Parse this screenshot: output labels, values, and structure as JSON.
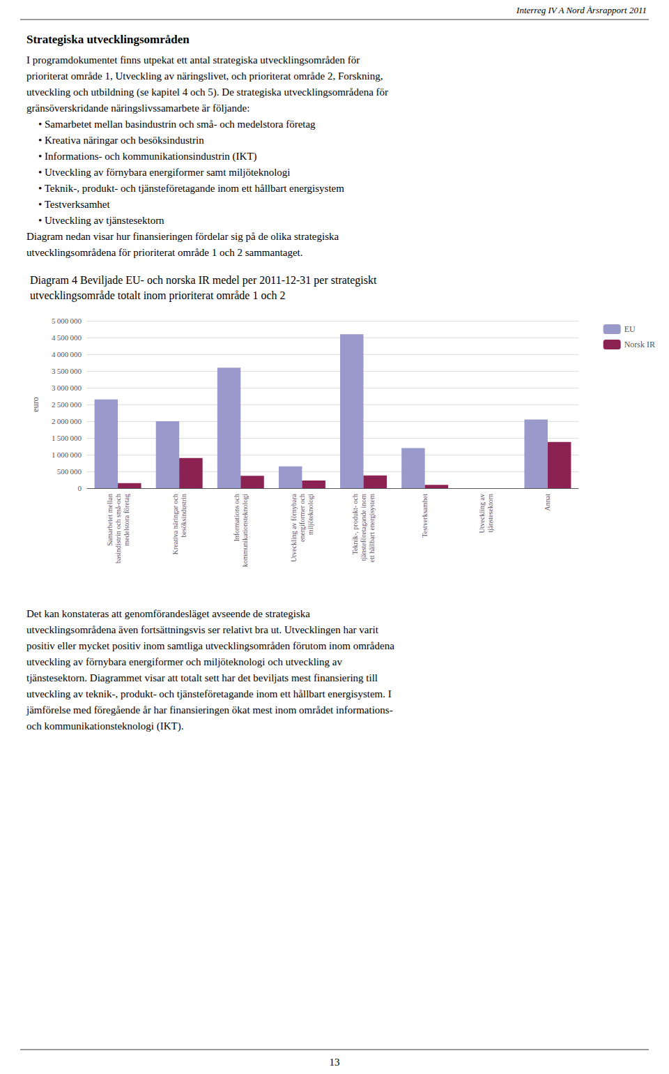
{
  "chart_data": {
    "type": "bar",
    "title": "Diagram 4 Beviljade EU- och norska IR medel per 2011-12-31 per strategiskt",
    "subtitle": "utvecklingsområde totalt inom prioriterat område 1 och 2",
    "categories": [
      "Samarbetet mellan\nbasindistrin och små-och\nmedelstora företag",
      "Kreativa näringar och\nbesöksindustrin",
      "Informations och\nkommunikationsteknologi",
      "Utveckling av förnybara\nenergiformer och\nmiljöteknologi",
      "Teknik-, produkt- och\ntjänsteföretagande inom\nett hållbart energisystem",
      "Testverksamhet",
      "Utveckling av\ntjänstesektorn",
      "Annat"
    ],
    "series": [
      {
        "name": "EU",
        "color": "#9999cc",
        "values": [
          2650000,
          2000000,
          3600000,
          650000,
          4600000,
          1200000,
          0,
          2050000
        ]
      },
      {
        "name": "Norsk IR",
        "color": "#8B2252",
        "values": [
          150000,
          900000,
          370000,
          230000,
          380000,
          100000,
          0,
          1380000
        ]
      }
    ],
    "ylabel": "euro",
    "ylim": [
      0,
      5000000
    ],
    "yticks": [
      0,
      {
        "value": 500000,
        "label": "500 000"
      },
      {
        "value": 1000000,
        "label": "1 000 000"
      },
      {
        "value": 1500000,
        "label": "1 500 000"
      },
      {
        "value": 2000000,
        "label": "2 000 000"
      },
      {
        "value": 2500000,
        "label": "2 500 000"
      },
      {
        "value": 3000000,
        "label": "3 000 000"
      },
      {
        "value": 3500000,
        "label": "3 500 000"
      },
      {
        "value": 4000000,
        "label": "4 000 000"
      },
      {
        "value": 4500000,
        "label": "4 500 000"
      },
      {
        "value": 5000000,
        "label": "5 000 000"
      }
    ],
    "grid": true,
    "legend": "upper right",
    "annotations": [
      "Interreg IV A Nord Årsrapport 2011",
      "Strategiska utvecklingsområden",
      "I programdokumentet finns utpekat ett antal strategiska utvecklingsområden för",
      "prioriterat område 1, Utveckling av näringslivet, och prioriterat område 2, Forskning,",
      "utveckling och utbildning (se kapitel 4 och 5). De strategiska utvecklingsområdena för",
      "gränsöverskridande näringslivssamarbete är följande:",
      "• Samarbetet mellan basindustrin och små- och medelstora företag",
      "• Kreativa näringar och besöksindustrin",
      "• Informations- och kommunikationsindustrin (IKT)",
      "• Utveckling av förnybara energiformer samt miljöteknologi",
      "• Teknik-, produkt- och tjänsteföretagande inom ett hållbart energisystem",
      "• Testverksamhet",
      "• Utveckling av tjänstesektorn",
      "Diagram nedan visar hur finansieringen fördelar sig på de olika strategiska",
      "utvecklingsområdena för prioriterat område 1 och 2 sammantaget.",
      "Det kan konstateras att genomförandesläget avseende de strategiska",
      "utvecklingsområdena även fortsättningsvis ser relativt bra ut. Utvecklingen har varit",
      "positiv eller mycket positiv inom samtliga utvecklingsområden förutom inom områdena",
      "utveckling av förnybara energiformer och miljöteknologi och utveckling av",
      "tjänstesektorn. Diagrammet visar att totalt sett har det beviljats mest finansiering till",
      "utveckling av teknik-, produkt- och tjänsteföretagande inom ett hållbart energisystem. I",
      "jämförelse med föregående år har finansieringen ökat mest inom området informations-",
      "och kommunikationsteknologi (IKT).",
      "13"
    ]
  }
}
